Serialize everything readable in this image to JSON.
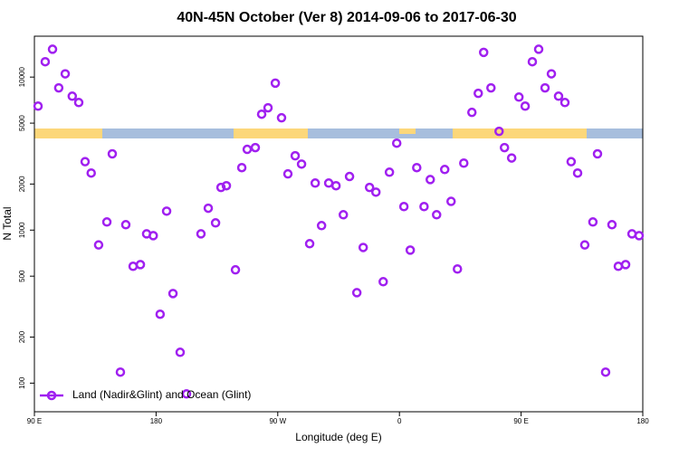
{
  "chart_data": {
    "type": "scatter",
    "title": "40N-45N October (Ver 8)   2014-09-06 to 2017-06-30",
    "x_label": "Longitude (deg E)",
    "y_label": "N Total",
    "x": [
      92.7,
      98,
      103.4,
      108,
      112.8,
      118,
      122.8,
      127.5,
      132,
      137.5,
      143.6,
      147.6,
      153.6,
      157.6,
      163,
      168.4,
      173,
      177.9,
      183,
      187.8,
      192.5,
      197.8,
      202.5,
      213.2,
      218.6,
      224,
      228,
      232,
      238.7,
      243.4,
      247.4,
      253.4,
      258.1,
      262.8,
      268.2,
      272.8,
      277.5,
      282.9,
      287.6,
      293.6,
      297.7,
      302.4,
      307.7,
      313.1,
      318.5,
      323.1,
      328.5,
      333.2,
      337.9,
      342.6,
      348,
      352.6,
      358,
      363.3,
      368,
      372.8,
      378.2,
      382.8,
      387.5,
      393.5,
      398.2,
      402.9,
      407.6,
      413.6,
      418.3,
      422.3,
      427.7,
      433.7,
      437.7,
      443,
      448.4,
      453,
      458.3,
      463,
      467.7,
      472.4,
      477.7,
      482.4,
      487,
      491.8,
      497.1,
      503.1,
      506.5,
      512.5,
      517.2,
      521.9,
      527.3,
      532,
      537.3
    ],
    "series": [
      {
        "name": "Land (Nadir&Glint) and Ocean (Glint)",
        "color": "#a020f0",
        "values": [
          6460,
          12600,
          15200,
          8500,
          10500,
          7500,
          6820,
          2800,
          2360,
          800,
          1130,
          3150,
          118,
          1085,
          580,
          595,
          945,
          920,
          282,
          1330,
          385,
          159,
          85,
          945,
          1390,
          1115,
          1900,
          1950,
          550,
          2560,
          3370,
          3460,
          5720,
          6300,
          9130,
          5420,
          2330,
          3060,
          2700,
          815,
          2030,
          1070,
          2030,
          1950,
          1260,
          2240,
          390,
          770,
          1900,
          1770,
          460,
          2390,
          3700,
          1425,
          740,
          2560,
          1425,
          2140,
          1260,
          2490,
          1540,
          557,
          2740,
          5880,
          7830,
          14500,
          8500,
          4420,
          3460,
          2960,
          7400,
          6460,
          12600,
          15200,
          8500,
          10500,
          7500,
          6820,
          2800,
          2360,
          800,
          1130,
          3150,
          118,
          1085,
          580,
          595,
          945,
          920
        ]
      }
    ],
    "xlim": [
      90,
      540
    ],
    "xticks": [
      {
        "value": 90,
        "label": "90 E"
      },
      {
        "value": 180,
        "label": "180"
      },
      {
        "value": 270,
        "label": "90 W"
      },
      {
        "value": 360,
        "label": "0"
      },
      {
        "value": 450,
        "label": "90 E"
      },
      {
        "value": 540,
        "label": "180"
      }
    ],
    "ylim": [
      65,
      18500
    ],
    "y_log": true,
    "yticks": [
      100,
      200,
      500,
      1000,
      2000,
      5000,
      10000
    ],
    "legend": "bottom-left"
  }
}
